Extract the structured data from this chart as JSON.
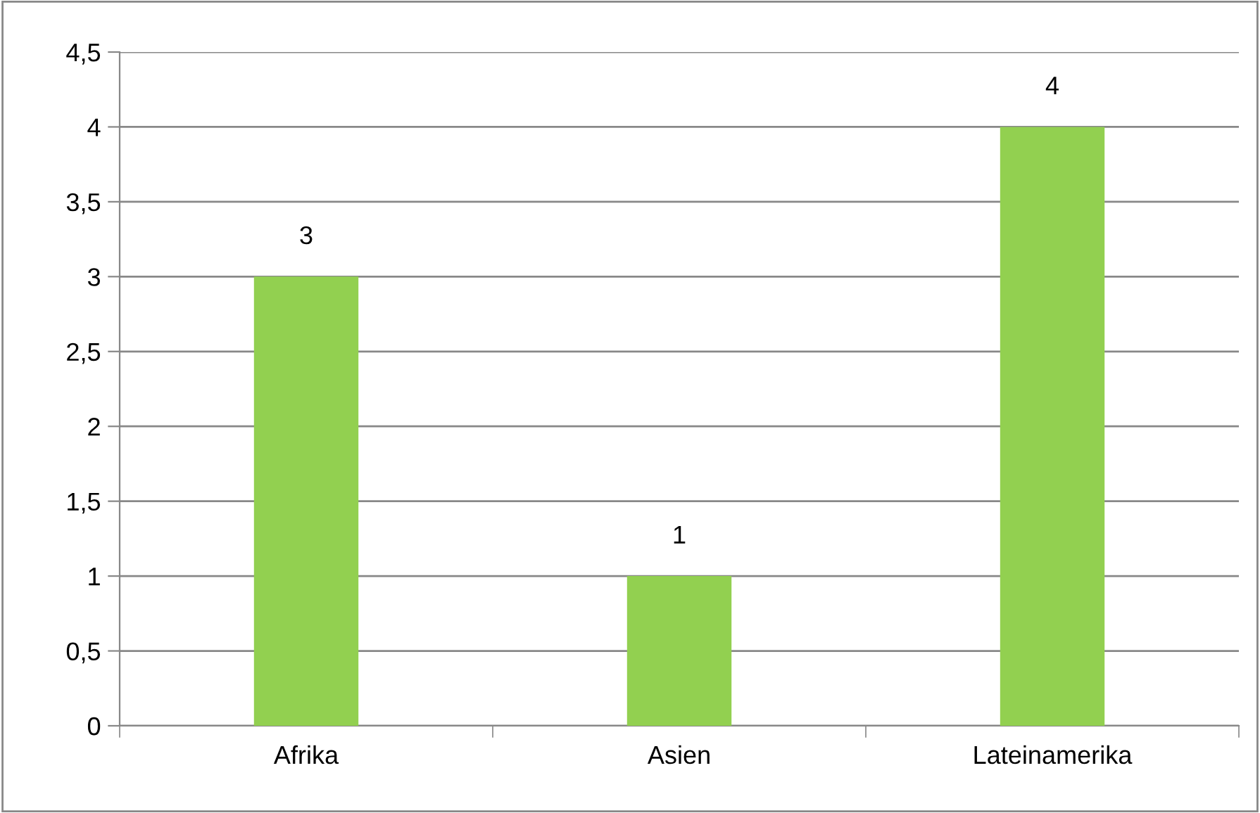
{
  "chart_data": {
    "type": "bar",
    "categories": [
      "Afrika",
      "Asien",
      "Lateinamerika"
    ],
    "values": [
      3,
      1,
      4
    ],
    "color": "#92d050",
    "data_labels": true,
    "ylim": [
      0,
      4.5
    ],
    "yticks": [
      0,
      {
        "value": 0.5,
        "label": "0,5"
      },
      1,
      {
        "value": 1.5,
        "label": "1,5"
      },
      2,
      {
        "value": 2.5,
        "label": "2,5"
      },
      3,
      {
        "value": 3.5,
        "label": "3,5"
      },
      4,
      {
        "value": 4.5,
        "label": "4,5"
      }
    ],
    "grid": "y",
    "legend": false
  }
}
